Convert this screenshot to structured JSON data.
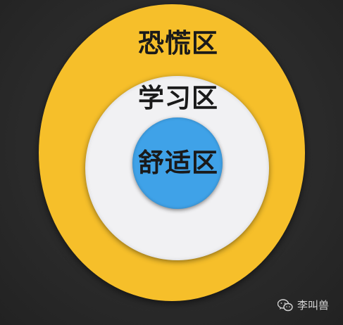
{
  "zones": {
    "outer": {
      "label": "恐慌区",
      "color": "#f6bf2a"
    },
    "middle": {
      "label": "学习区",
      "color": "#f1f1f3"
    },
    "inner": {
      "label": "舒适区",
      "color": "#3fa2e8"
    }
  },
  "background_color": "#2b2b2b",
  "watermark": {
    "icon": "wechat-icon",
    "text": "李叫兽"
  }
}
